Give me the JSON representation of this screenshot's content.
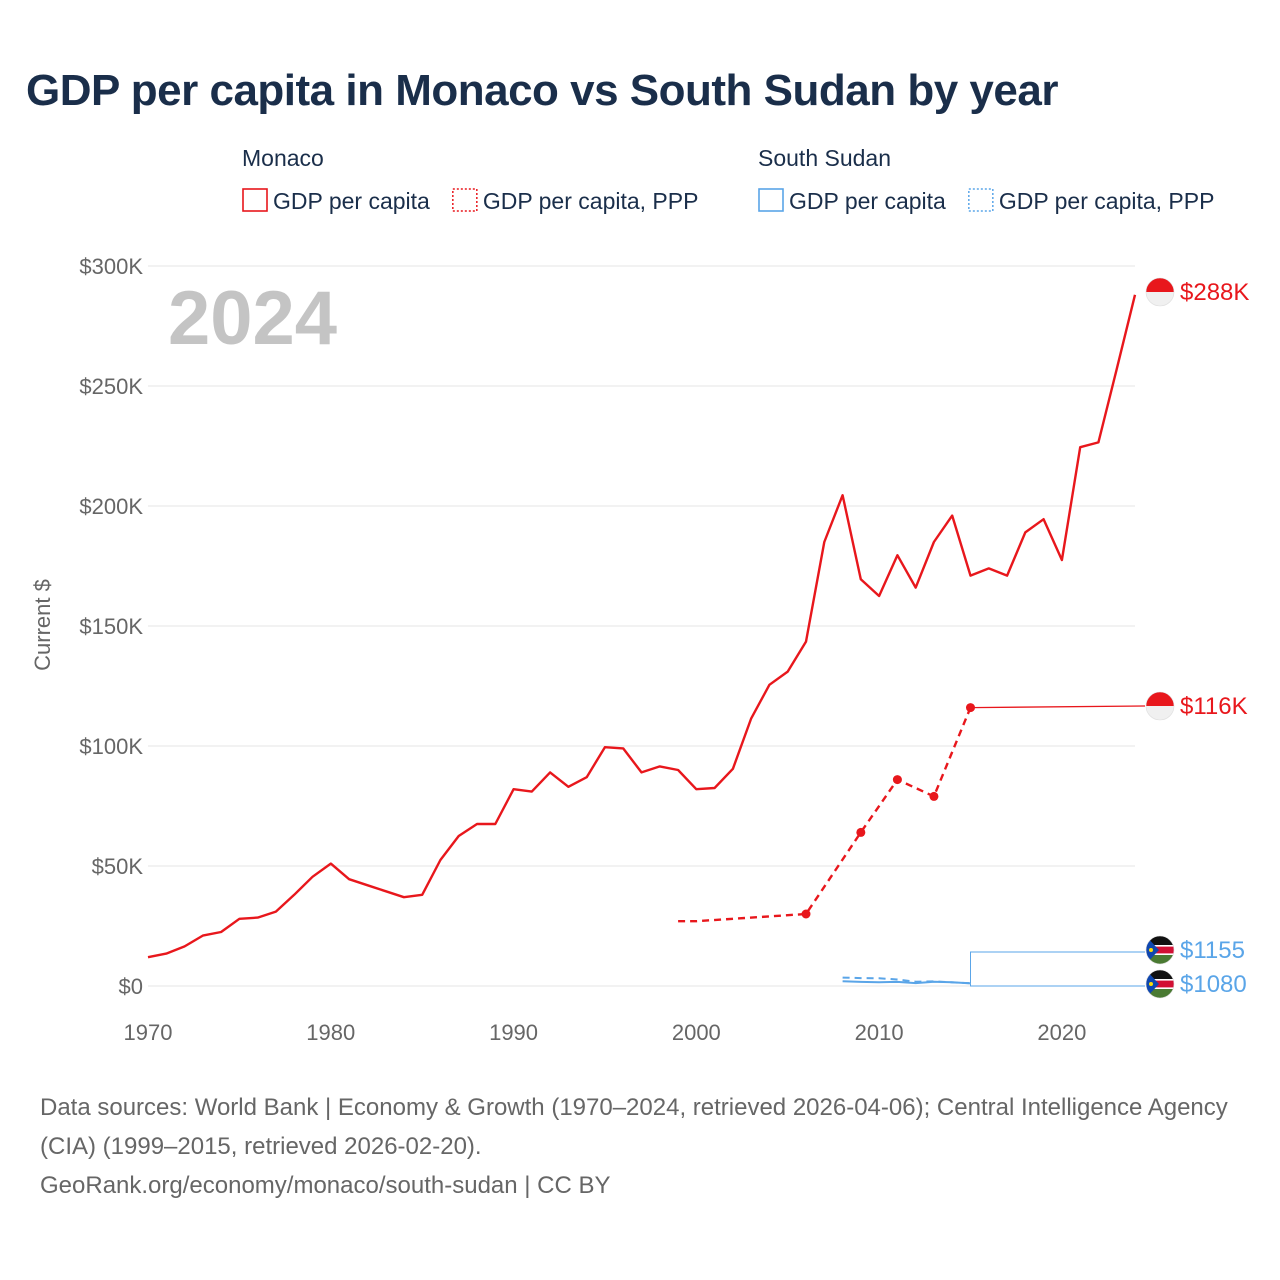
{
  "title": "GDP per capita in Monaco vs South Sudan by year",
  "legend": {
    "groups": [
      {
        "name": "Monaco",
        "color": "#e8171c",
        "items": [
          {
            "label": "GDP per capita",
            "style": "solid"
          },
          {
            "label": "GDP per capita, PPP",
            "style": "dotted"
          }
        ]
      },
      {
        "name": "South Sudan",
        "color": "#5aa5e8",
        "items": [
          {
            "label": "GDP per capita",
            "style": "solid"
          },
          {
            "label": "GDP per capita, PPP",
            "style": "dotted"
          }
        ]
      }
    ]
  },
  "year_label": "2024",
  "footer": {
    "line1": "Data sources: World Bank | Economy & Growth (1970–2024, retrieved 2026-04-06); Central Intelligence Agency (CIA) (1999–2015, retrieved 2026-02-20).",
    "line2": "GeoRank.org/economy/monaco/south-sudan | CC BY"
  },
  "colors": {
    "monaco": "#e8171c",
    "south_sudan": "#5aa5e8",
    "grid": "#e6e6e6",
    "axis_text": "#666666"
  },
  "chart_data": {
    "type": "line",
    "title": "GDP per capita in Monaco vs South Sudan by year",
    "xlabel": "",
    "ylabel": "Current $",
    "xlim": [
      1970,
      2024
    ],
    "ylim": [
      0,
      300000
    ],
    "x_ticks": [
      1970,
      1980,
      1990,
      2000,
      2010,
      2020
    ],
    "x_tick_labels": [
      "1970",
      "1980",
      "1990",
      "2000",
      "2010",
      "2020"
    ],
    "y_ticks": [
      0,
      50000,
      100000,
      150000,
      200000,
      250000,
      300000
    ],
    "y_tick_labels": [
      "$0",
      "$50K",
      "$100K",
      "$150K",
      "$200K",
      "$250K",
      "$300K"
    ],
    "grid": true,
    "series": [
      {
        "name": "Monaco GDP per capita",
        "country": "monaco",
        "style": "solid",
        "end_label": "$288K",
        "x": [
          1970,
          1971,
          1972,
          1973,
          1974,
          1975,
          1976,
          1977,
          1978,
          1979,
          1980,
          1981,
          1982,
          1983,
          1984,
          1985,
          1986,
          1987,
          1988,
          1989,
          1990,
          1991,
          1992,
          1993,
          1994,
          1995,
          1996,
          1997,
          1998,
          1999,
          2000,
          2001,
          2002,
          2003,
          2004,
          2005,
          2006,
          2007,
          2008,
          2009,
          2010,
          2011,
          2012,
          2013,
          2014,
          2015,
          2016,
          2017,
          2018,
          2019,
          2020,
          2021,
          2022,
          2023,
          2024
        ],
        "values": [
          12000,
          13500,
          16500,
          21000,
          22500,
          28000,
          28500,
          31000,
          38000,
          45500,
          51000,
          44500,
          42000,
          39500,
          37000,
          38000,
          52500,
          62500,
          67500,
          67500,
          82000,
          81000,
          89000,
          83000,
          87000,
          99500,
          99000,
          89000,
          91500,
          90000,
          82000,
          82500,
          90500,
          111500,
          125500,
          131000,
          143500,
          185000,
          204500,
          169500,
          162500,
          179500,
          166000,
          185000,
          196000,
          171000,
          174000,
          171000,
          189000,
          194500,
          177500,
          224500,
          226500,
          257000,
          288000
        ]
      },
      {
        "name": "Monaco GDP per capita, PPP",
        "country": "monaco",
        "style": "dashed",
        "end_label": "$116K",
        "x": [
          1999,
          2000,
          2006,
          2009,
          2011,
          2013,
          2015
        ],
        "values": [
          27000,
          27000,
          30000,
          64000,
          86000,
          79000,
          116000
        ],
        "markers": [
          2006,
          2009,
          2011,
          2013,
          2015
        ]
      },
      {
        "name": "South Sudan GDP per capita",
        "country": "south_sudan",
        "style": "solid",
        "end_label": "$1080",
        "x": [
          2008,
          2009,
          2010,
          2011,
          2012,
          2013,
          2014,
          2015
        ],
        "values": [
          2000,
          1700,
          1600,
          1700,
          1200,
          1800,
          1600,
          1080
        ]
      },
      {
        "name": "South Sudan GDP per capita, PPP",
        "country": "south_sudan",
        "style": "dashed",
        "end_label": "$1155",
        "x": [
          2008,
          2009,
          2010,
          2011,
          2012,
          2013,
          2014,
          2015
        ],
        "values": [
          3500,
          3300,
          3200,
          2700,
          1800,
          1900,
          1500,
          1155
        ]
      }
    ],
    "end_label_targets": [
      {
        "label": "$288K",
        "country": "monaco",
        "anchor_value": 288000
      },
      {
        "label": "$116K",
        "country": "monaco",
        "anchor_value": 116000
      },
      {
        "label": "$1155",
        "country": "south_sudan",
        "anchor_value": 14500
      },
      {
        "label": "$1080",
        "country": "south_sudan",
        "anchor_value": 300
      }
    ]
  }
}
